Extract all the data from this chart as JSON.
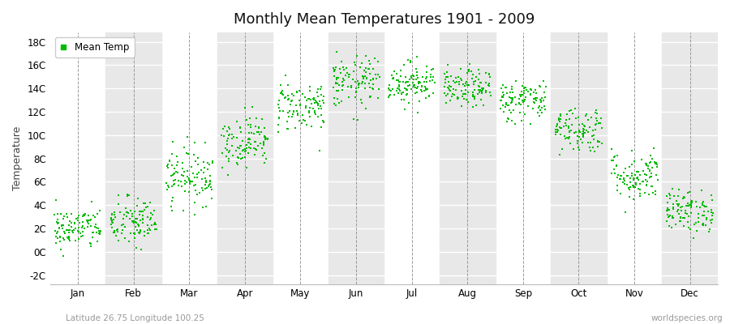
{
  "title": "Monthly Mean Temperatures 1901 - 2009",
  "ylabel": "Temperature",
  "subtitle_left": "Latitude 26.75 Longitude 100.25",
  "subtitle_right": "worldspecies.org",
  "legend_label": "Mean Temp",
  "marker_color": "#00BB00",
  "background_color": "#ffffff",
  "plot_bg_color": "#ffffff",
  "stripe_color": "#e8e8e8",
  "yticks": [
    -2,
    0,
    2,
    4,
    6,
    8,
    10,
    12,
    14,
    16,
    18
  ],
  "ytick_labels": [
    "-2C",
    "0C",
    "2C",
    "4C",
    "6C",
    "8C",
    "10C",
    "12C",
    "14C",
    "16C",
    "18C"
  ],
  "ylim": [
    -2.8,
    18.8
  ],
  "months": [
    "Jan",
    "Feb",
    "Mar",
    "Apr",
    "May",
    "Jun",
    "Jul",
    "Aug",
    "Sep",
    "Oct",
    "Nov",
    "Dec"
  ],
  "n_years": 109,
  "seed": 42,
  "monthly_means": [
    2.0,
    2.5,
    6.5,
    9.5,
    12.5,
    14.5,
    14.5,
    14.0,
    13.0,
    10.5,
    6.5,
    3.5
  ],
  "monthly_stds": [
    0.9,
    1.1,
    1.2,
    1.1,
    1.1,
    1.1,
    0.9,
    0.8,
    0.9,
    1.0,
    1.1,
    0.9
  ]
}
